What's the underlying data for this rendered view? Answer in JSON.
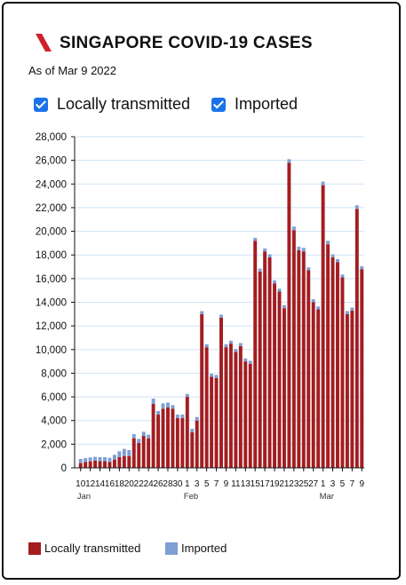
{
  "header": {
    "title": "SINGAPORE COVID-19 CASES",
    "subtitle": "As of Mar 9 2022"
  },
  "toggles": [
    {
      "label": "Locally transmitted",
      "checked": true
    },
    {
      "label": "Imported",
      "checked": true
    }
  ],
  "colors": {
    "local": "#a31d21",
    "imported": "#7f9fd3",
    "grid": "#cfe3f7",
    "logo": "#d0202a",
    "checkbox": "#1a73e8"
  },
  "legend": {
    "local_label": "Locally transmitted",
    "imported_label": "Imported"
  },
  "chart_data": {
    "type": "bar",
    "stacked": true,
    "title": "SINGAPORE COVID-19 CASES",
    "ylim": [
      0,
      28000
    ],
    "yticks": [
      0,
      2000,
      4000,
      6000,
      8000,
      10000,
      12000,
      14000,
      16000,
      18000,
      20000,
      22000,
      24000,
      26000,
      28000
    ],
    "ytick_labels": [
      "0",
      "2,000",
      "4,000",
      "6,000",
      "8,000",
      "10,000",
      "12,000",
      "14,000",
      "16,000",
      "18,000",
      "20,000",
      "22,000",
      "24,000",
      "26,000",
      "28,000"
    ],
    "grid": true,
    "legend_position": "bottom-left",
    "x_tick_labels": [
      "10",
      "12",
      "14",
      "16",
      "18",
      "20",
      "22",
      "24",
      "26",
      "28",
      "30",
      "1",
      "3",
      "5",
      "7",
      "9",
      "11",
      "13",
      "15",
      "17",
      "19",
      "21",
      "23",
      "25",
      "27",
      "1",
      "3",
      "5",
      "7",
      "9"
    ],
    "month_labels": [
      {
        "label": "Jan",
        "at": "Jan 10"
      },
      {
        "label": "Feb",
        "at": "Feb 1"
      },
      {
        "label": "Mar",
        "at": "Mar 1"
      }
    ],
    "categories": [
      "Jan 10",
      "Jan 11",
      "Jan 12",
      "Jan 13",
      "Jan 14",
      "Jan 15",
      "Jan 16",
      "Jan 17",
      "Jan 18",
      "Jan 19",
      "Jan 20",
      "Jan 21",
      "Jan 22",
      "Jan 23",
      "Jan 24",
      "Jan 25",
      "Jan 26",
      "Jan 27",
      "Jan 28",
      "Jan 29",
      "Jan 30",
      "Jan 31",
      "Feb 1",
      "Feb 2",
      "Feb 3",
      "Feb 4",
      "Feb 5",
      "Feb 6",
      "Feb 7",
      "Feb 8",
      "Feb 9",
      "Feb 10",
      "Feb 11",
      "Feb 12",
      "Feb 13",
      "Feb 14",
      "Feb 15",
      "Feb 16",
      "Feb 17",
      "Feb 18",
      "Feb 19",
      "Feb 20",
      "Feb 21",
      "Feb 22",
      "Feb 23",
      "Feb 24",
      "Feb 25",
      "Feb 26",
      "Feb 27",
      "Feb 28",
      "Mar 1",
      "Mar 2",
      "Mar 3",
      "Mar 4",
      "Mar 5",
      "Mar 6",
      "Mar 7",
      "Mar 8",
      "Mar 9"
    ],
    "series": [
      {
        "name": "Locally transmitted",
        "values": [
          400,
          500,
          550,
          600,
          560,
          560,
          500,
          700,
          900,
          1000,
          1000,
          2500,
          2100,
          2700,
          2500,
          5400,
          4500,
          5000,
          5100,
          5000,
          4200,
          4200,
          6000,
          3000,
          4000,
          13000,
          10200,
          7700,
          7600,
          12700,
          10200,
          10500,
          9800,
          10300,
          9000,
          8800,
          19200,
          16600,
          18300,
          17800,
          15600,
          14900,
          13500,
          25800,
          20100,
          18400,
          18300,
          16700,
          14000,
          13400,
          23900,
          18900,
          17800,
          17400,
          16100,
          13000,
          13300,
          21900,
          16800
        ]
      },
      {
        "name": "Imported",
        "values": [
          350,
          320,
          330,
          330,
          340,
          340,
          350,
          400,
          500,
          600,
          500,
          350,
          350,
          350,
          300,
          450,
          300,
          450,
          420,
          300,
          300,
          300,
          250,
          300,
          300,
          250,
          250,
          250,
          250,
          250,
          250,
          250,
          250,
          250,
          250,
          250,
          250,
          250,
          250,
          250,
          250,
          250,
          250,
          300,
          300,
          300,
          300,
          250,
          250,
          250,
          300,
          300,
          250,
          250,
          250,
          250,
          250,
          300,
          250
        ]
      }
    ]
  }
}
